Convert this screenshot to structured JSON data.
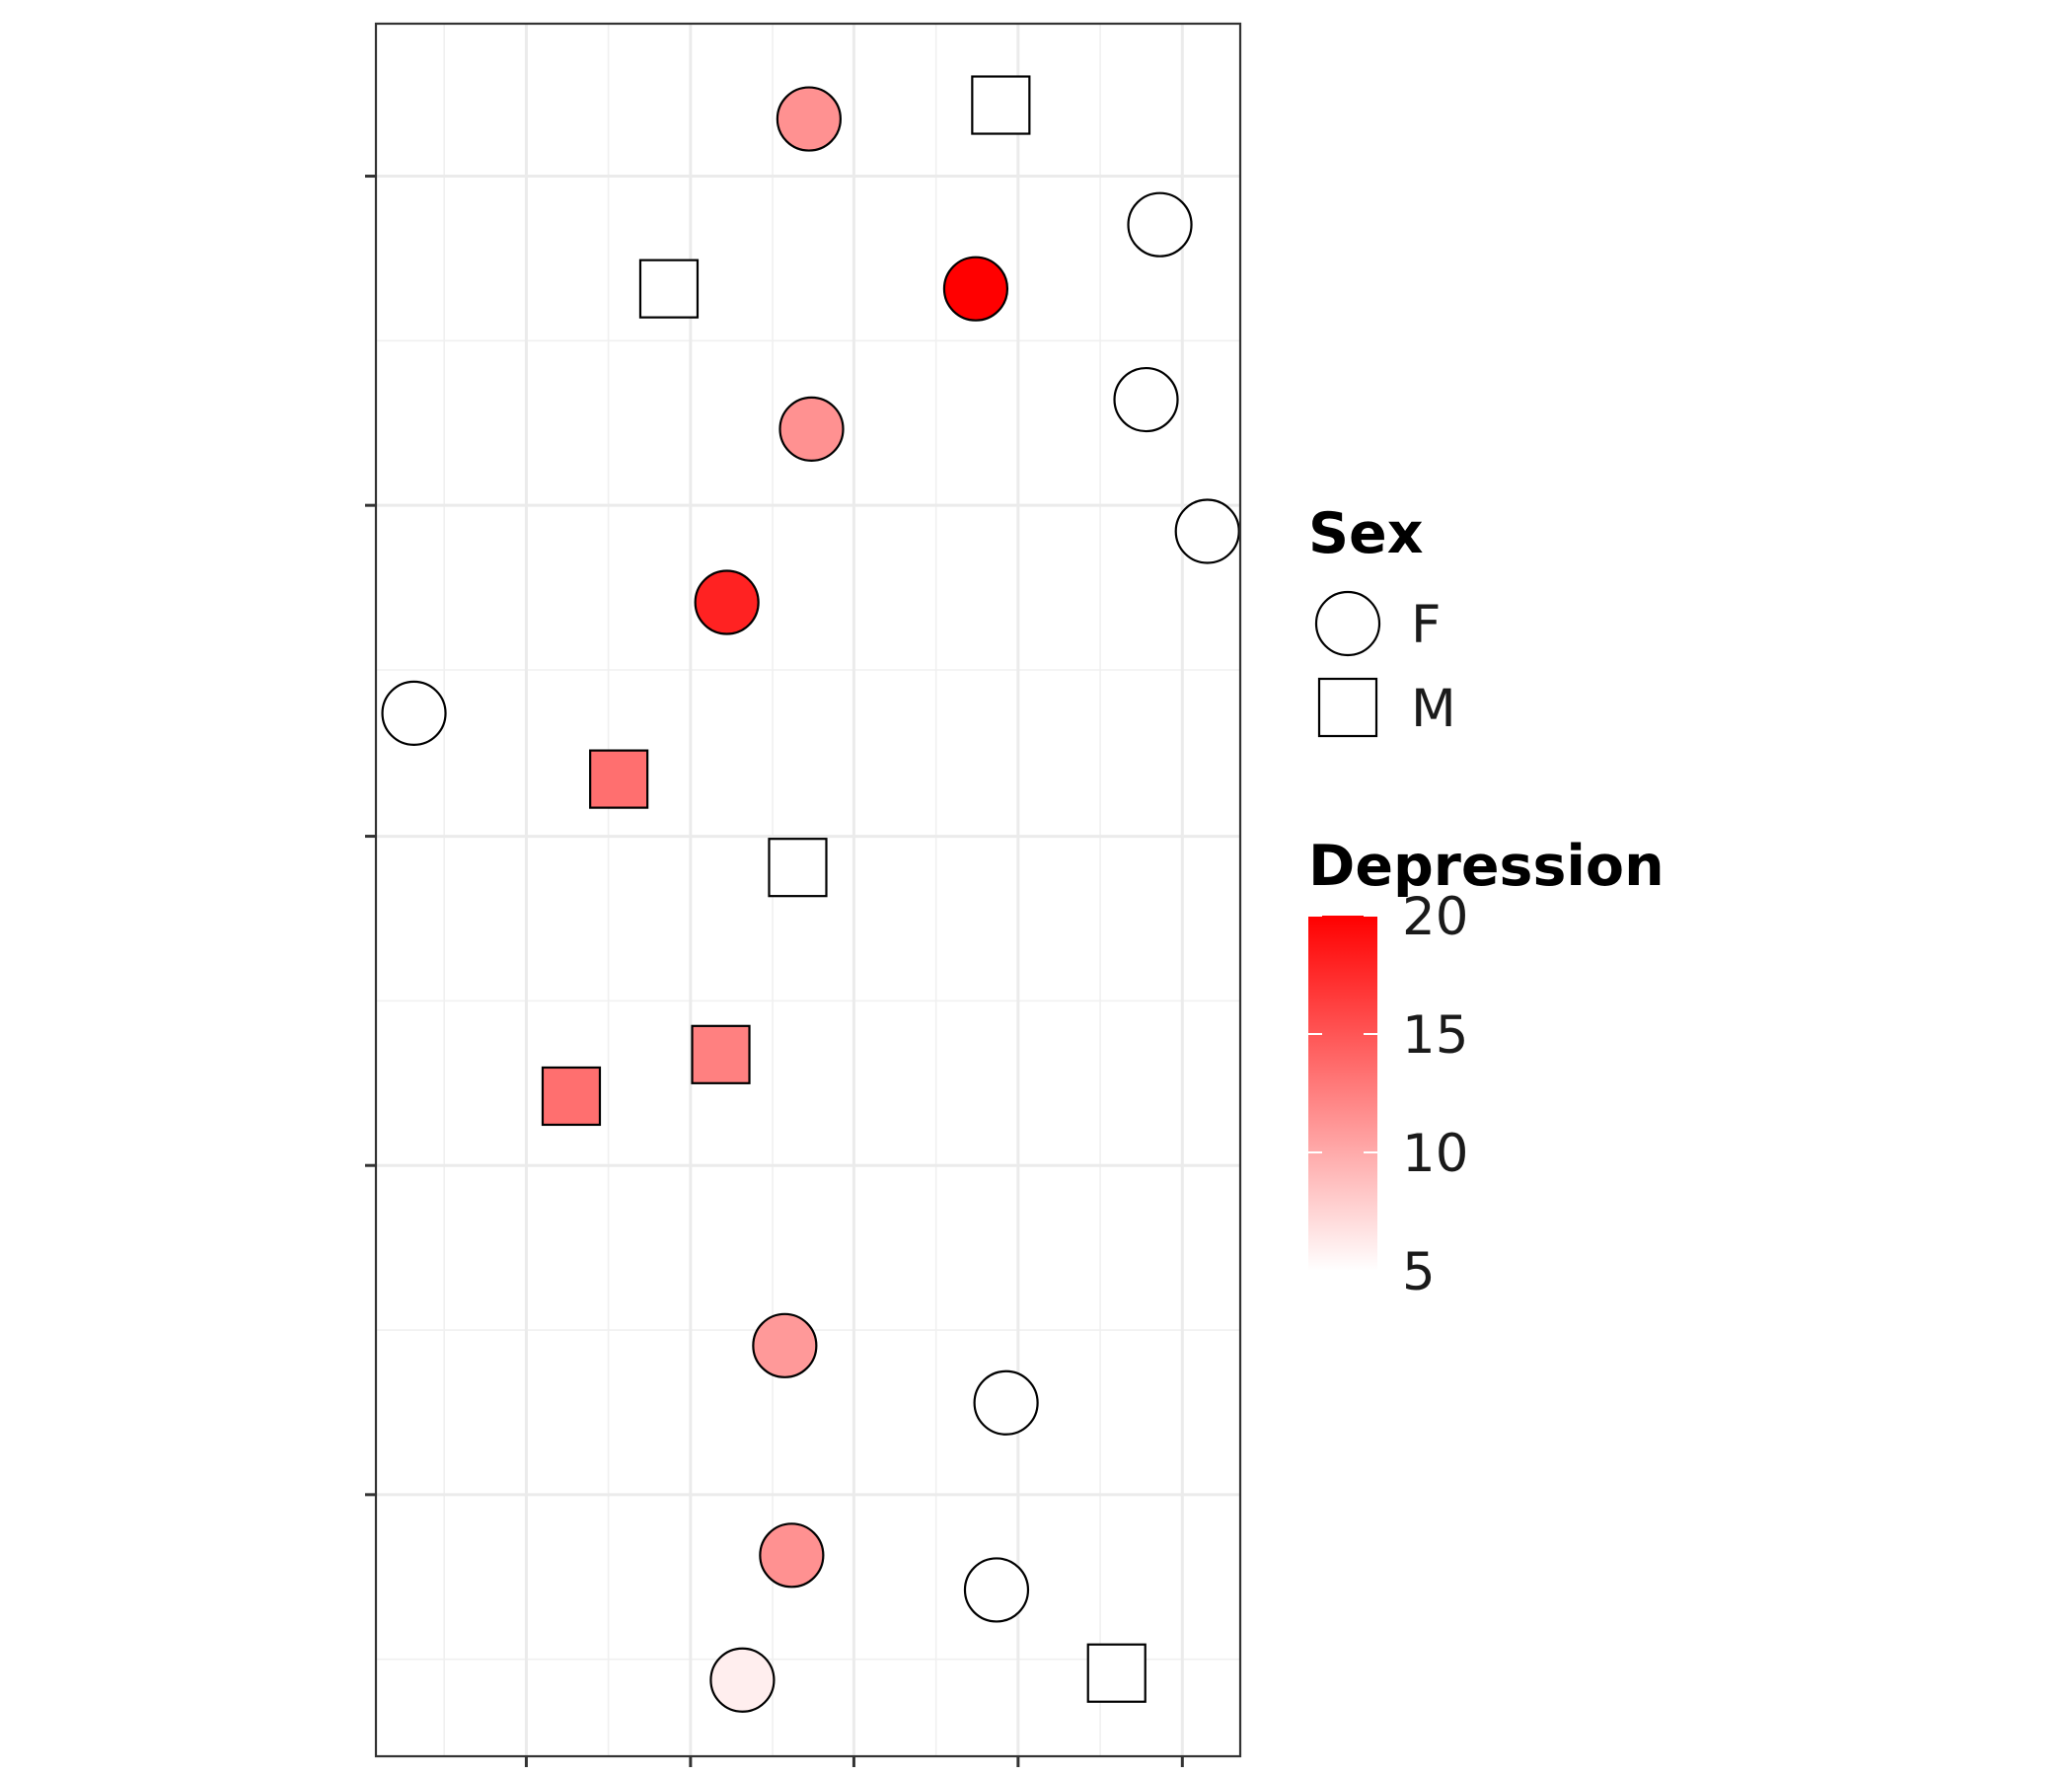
{
  "chart_data": {
    "type": "scatter",
    "title": "",
    "xlabel": "",
    "ylabel": "",
    "x_ticks_labeled": false,
    "y_ticks_labeled": false,
    "xlim": [
      0,
      1
    ],
    "ylim": [
      0,
      1
    ],
    "grid": true,
    "legend_placement": "right",
    "shape_legend": {
      "title": "Sex",
      "entries": [
        {
          "label": "F",
          "shape": "circle"
        },
        {
          "label": "M",
          "shape": "square"
        }
      ]
    },
    "color_legend": {
      "title": "Depression",
      "min": 5,
      "max": 20,
      "ticks": [
        5,
        10,
        15,
        20
      ],
      "tick_labels": [
        "5",
        "10",
        "15",
        "20"
      ],
      "low_color": "#ffffff",
      "high_color": "#ff0000"
    },
    "points": [
      {
        "x": 0.501,
        "y": 0.945,
        "sex": "F",
        "depression": 11.5
      },
      {
        "x": 0.723,
        "y": 0.953,
        "sex": "M",
        "depression": null
      },
      {
        "x": 0.907,
        "y": 0.884,
        "sex": "F",
        "depression": null
      },
      {
        "x": 0.339,
        "y": 0.847,
        "sex": "M",
        "depression": null
      },
      {
        "x": 0.694,
        "y": 0.847,
        "sex": "F",
        "depression": 20
      },
      {
        "x": 0.891,
        "y": 0.783,
        "sex": "F",
        "depression": null
      },
      {
        "x": 0.504,
        "y": 0.766,
        "sex": "F",
        "depression": 11.5
      },
      {
        "x": 0.962,
        "y": 0.707,
        "sex": "F",
        "depression": null
      },
      {
        "x": 0.406,
        "y": 0.666,
        "sex": "F",
        "depression": 18
      },
      {
        "x": 0.044,
        "y": 0.602,
        "sex": "F",
        "depression": null
      },
      {
        "x": 0.281,
        "y": 0.564,
        "sex": "M",
        "depression": 13.5
      },
      {
        "x": 0.488,
        "y": 0.513,
        "sex": "M",
        "depression": null
      },
      {
        "x": 0.399,
        "y": 0.405,
        "sex": "M",
        "depression": 12.5
      },
      {
        "x": 0.226,
        "y": 0.381,
        "sex": "M",
        "depression": 13.5
      },
      {
        "x": 0.473,
        "y": 0.237,
        "sex": "F",
        "depression": 11
      },
      {
        "x": 0.729,
        "y": 0.204,
        "sex": "F",
        "depression": null
      },
      {
        "x": 0.481,
        "y": 0.116,
        "sex": "F",
        "depression": 11.5
      },
      {
        "x": 0.718,
        "y": 0.096,
        "sex": "F",
        "depression": null
      },
      {
        "x": 0.424,
        "y": 0.044,
        "sex": "F",
        "depression": 6
      },
      {
        "x": 0.857,
        "y": 0.048,
        "sex": "M",
        "depression": null
      }
    ]
  }
}
